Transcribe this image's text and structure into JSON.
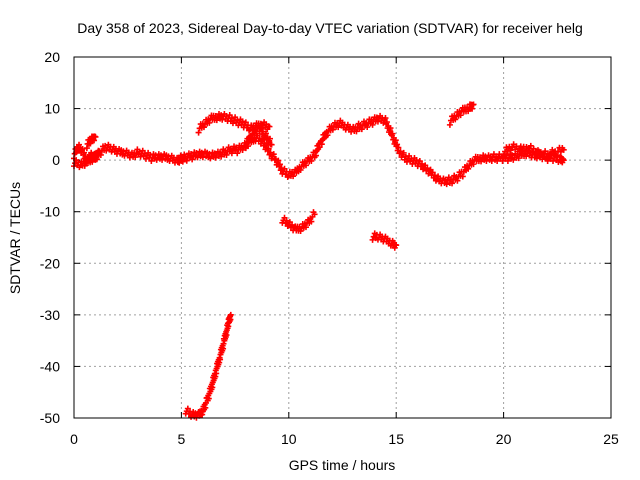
{
  "chart_data": {
    "type": "scatter",
    "title": "Day 358 of 2023, Sidereal Day-to-day VTEC variation (SDTVAR) for receiver helg",
    "xlabel": "GPS time / hours",
    "ylabel": "SDTVAR / TECUs",
    "xlim": [
      0,
      25
    ],
    "ylim": [
      -50,
      20
    ],
    "xticks": [
      0,
      5,
      10,
      15,
      20,
      25
    ],
    "yticks": [
      -50,
      -40,
      -30,
      -20,
      -10,
      0,
      10,
      20
    ],
    "xtick_labels": [
      "0",
      "5",
      "10",
      "15",
      "20",
      "25"
    ],
    "ytick_labels": [
      "-50",
      "-40",
      "-30",
      "-20",
      "-10",
      "0",
      "10",
      "20"
    ],
    "grid": true,
    "marker": "plus",
    "color": "#ff0000",
    "series": [
      {
        "name": "main-track",
        "x": [
          0.0,
          0.2,
          0.4,
          0.6,
          0.8,
          1.0,
          1.2,
          1.5,
          1.8,
          2.1,
          2.4,
          2.7,
          3.0,
          3.3,
          3.6,
          3.9,
          4.2,
          4.5,
          4.8,
          5.0,
          5.2,
          5.5,
          5.8,
          6.1,
          6.4,
          6.7,
          7.0,
          7.3,
          7.6,
          7.9,
          8.2,
          8.5,
          8.8,
          9.1,
          9.4,
          9.7,
          10.0,
          10.3,
          10.6,
          10.9,
          11.2,
          11.5,
          11.8,
          12.1,
          12.4,
          12.7,
          13.0,
          13.3,
          13.6,
          13.9,
          14.2,
          14.5,
          14.8,
          15.1,
          15.4,
          15.7,
          16.0,
          16.3,
          16.6,
          16.9,
          17.2,
          17.5,
          17.8,
          18.1,
          18.4,
          18.7,
          19.0,
          19.3,
          19.6,
          19.9,
          20.2,
          20.5,
          20.8,
          21.1,
          21.4,
          21.7,
          22.0,
          22.3,
          22.6,
          22.8
        ],
        "y": [
          1.0,
          2.5,
          1.5,
          0.0,
          1.0,
          0.5,
          1.5,
          2.5,
          2.0,
          1.5,
          1.5,
          1.0,
          1.5,
          1.0,
          0.5,
          0.5,
          0.5,
          0.5,
          0.0,
          0.3,
          0.5,
          0.8,
          1.0,
          1.0,
          1.0,
          1.2,
          1.5,
          2.0,
          2.0,
          2.5,
          3.5,
          4.5,
          3.5,
          1.5,
          0.0,
          -2.0,
          -3.0,
          -2.5,
          -1.0,
          0.0,
          1.0,
          3.5,
          5.5,
          6.5,
          7.0,
          6.5,
          6.0,
          6.5,
          7.0,
          7.5,
          8.0,
          7.5,
          5.0,
          2.0,
          0.5,
          0.0,
          -0.5,
          -1.5,
          -2.5,
          -3.5,
          -4.0,
          -4.0,
          -3.5,
          -2.5,
          -1.0,
          0.0,
          0.5,
          0.5,
          0.5,
          0.5,
          0.5,
          0.5,
          1.0,
          1.5,
          1.0,
          1.0,
          0.5,
          0.5,
          0.0,
          0.0
        ]
      },
      {
        "name": "upper-arc",
        "x": [
          5.8,
          6.1,
          6.4,
          6.7,
          7.0,
          7.3,
          7.6,
          7.9,
          8.2,
          8.5,
          8.8,
          9.1
        ],
        "y": [
          6.0,
          7.0,
          8.0,
          8.5,
          8.5,
          8.0,
          7.5,
          7.0,
          6.0,
          6.5,
          7.0,
          6.5
        ]
      },
      {
        "name": "mid-cluster",
        "x": [
          8.0,
          8.3,
          8.6,
          8.9,
          9.2
        ],
        "y": [
          3.0,
          5.0,
          6.0,
          5.0,
          3.0
        ]
      },
      {
        "name": "early-blip",
        "x": [
          0.6,
          0.8,
          1.0
        ],
        "y": [
          3.0,
          3.8,
          4.5
        ]
      },
      {
        "name": "early-low",
        "x": [
          0.0,
          0.3,
          0.6,
          0.9,
          1.1
        ],
        "y": [
          -0.5,
          -1.0,
          -0.5,
          0.5,
          1.5
        ]
      },
      {
        "name": "late-arc",
        "x": [
          17.5,
          17.8,
          18.1,
          18.4,
          18.6
        ],
        "y": [
          7.5,
          8.5,
          9.5,
          10.3,
          10.8
        ]
      },
      {
        "name": "late-tail",
        "x": [
          20.0,
          20.4,
          20.8,
          21.2,
          21.6,
          22.0,
          22.4,
          22.8
        ],
        "y": [
          1.5,
          2.5,
          2.0,
          2.5,
          1.5,
          1.0,
          1.5,
          2.0
        ]
      },
      {
        "name": "dip-segment-1",
        "x": [
          9.7,
          10.0,
          10.3,
          10.6,
          10.9,
          11.2
        ],
        "y": [
          -11.5,
          -12.5,
          -13.5,
          -13.0,
          -12.0,
          -10.5
        ]
      },
      {
        "name": "dip-segment-2",
        "x": [
          13.9,
          14.2,
          14.5,
          14.8,
          15.0
        ],
        "y": [
          -14.8,
          -15.0,
          -15.5,
          -16.0,
          -16.5
        ]
      },
      {
        "name": "steep-drop",
        "x": [
          5.2,
          5.5,
          5.8,
          6.0,
          6.2,
          6.4,
          6.6,
          6.8,
          7.0,
          7.2,
          7.3
        ],
        "y": [
          -48.5,
          -49.5,
          -49.5,
          -48.5,
          -46.5,
          -44.0,
          -41.0,
          -38.0,
          -35.0,
          -31.5,
          -30.0
        ]
      }
    ]
  }
}
